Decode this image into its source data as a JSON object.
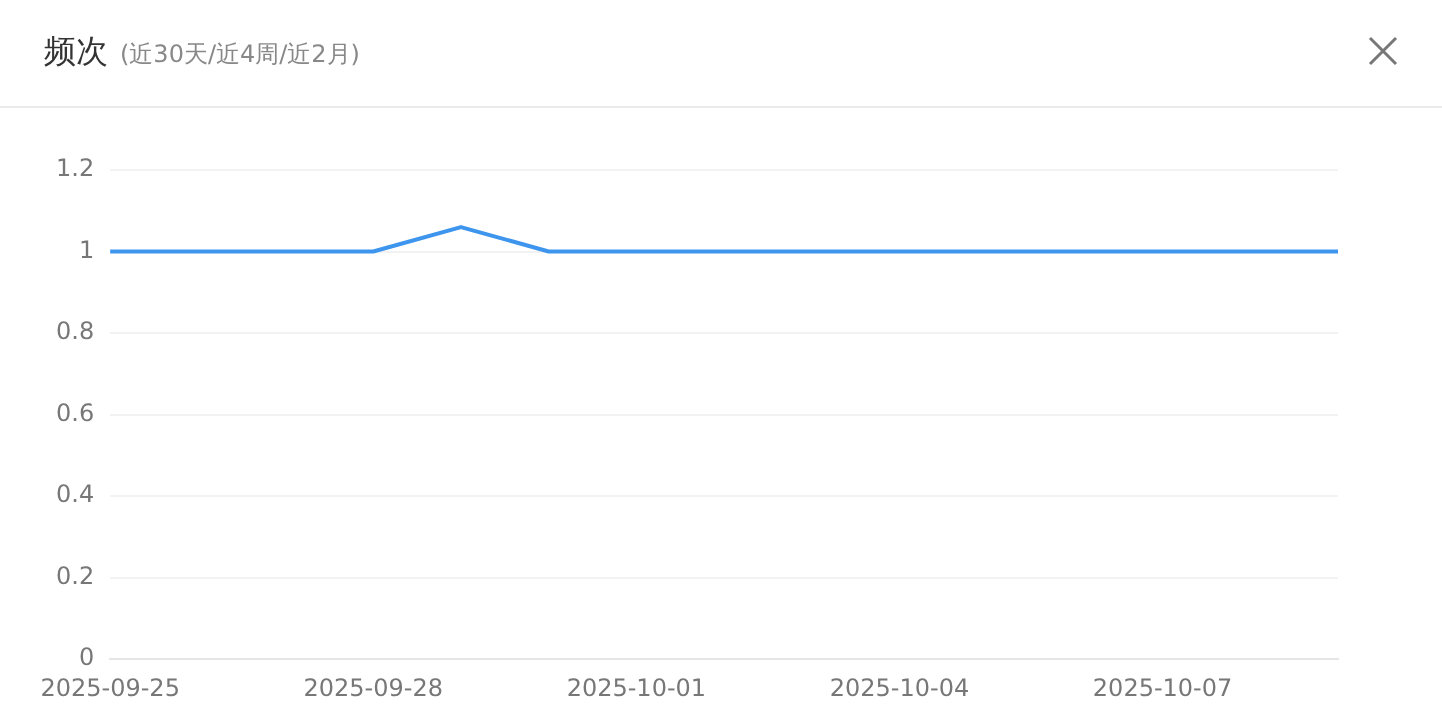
{
  "chart_data": {
    "type": "line",
    "title": "频次",
    "subtitle": "(近30天/近4周/近2月)",
    "categories": [
      "2025-09-25",
      null,
      null,
      "2025-09-28",
      null,
      null,
      "2025-10-01",
      null,
      null,
      "2025-10-04",
      null,
      null,
      "2025-10-07",
      null,
      null
    ],
    "series": [
      {
        "color": "#3d95ee",
        "values": [
          1,
          1,
          1,
          1,
          1.06,
          1,
          1,
          1,
          1,
          1,
          1,
          1,
          1,
          1,
          1
        ]
      }
    ],
    "ylim": [
      0,
      1.2
    ],
    "yticks": [
      0,
      0.2,
      0.4,
      0.6,
      0.8,
      1,
      1.2
    ],
    "grid": "y",
    "legend": false,
    "marker": "none",
    "line_style": "solid"
  }
}
